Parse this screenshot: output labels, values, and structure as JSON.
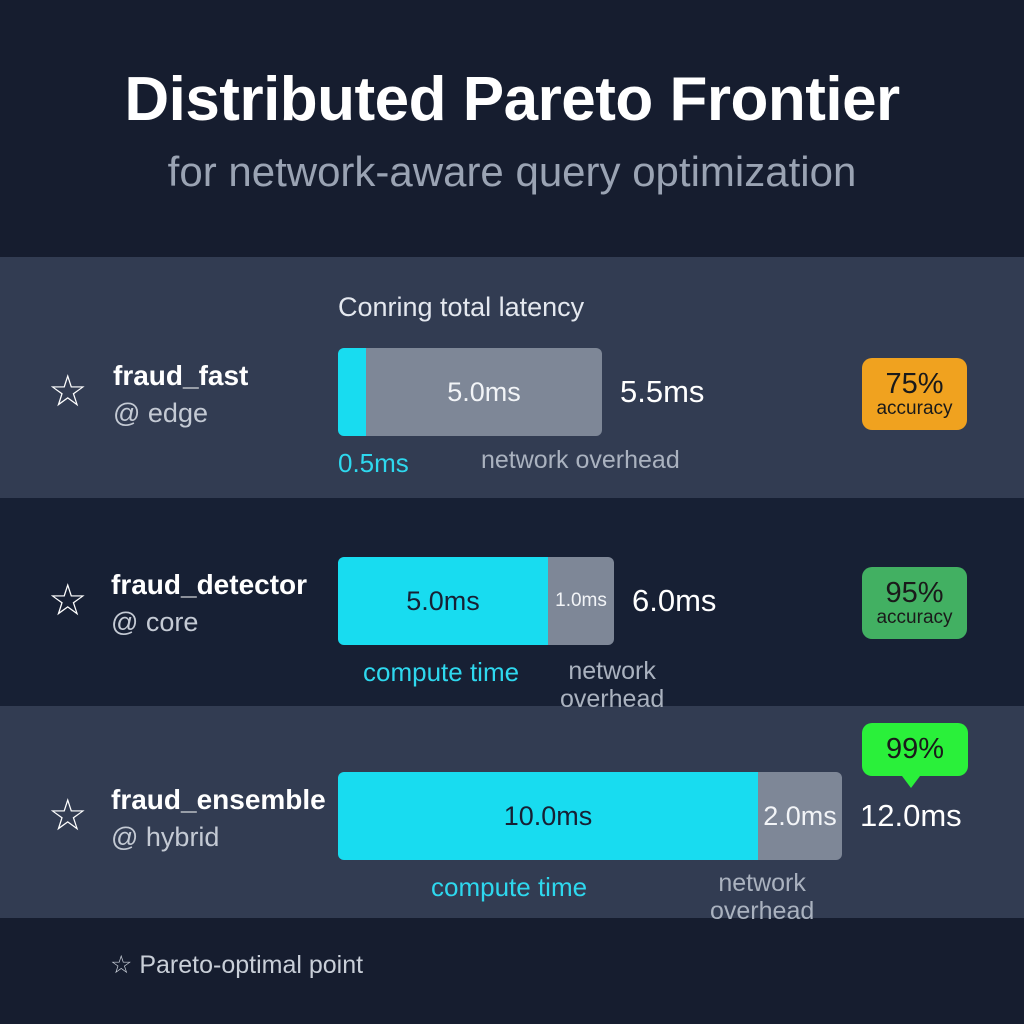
{
  "title": "Distributed Pareto Frontier",
  "subtitle": "for network-aware query optimization",
  "chart_data": {
    "type": "bar",
    "orientation": "horizontal",
    "stacked": true,
    "header": "Conring total latency",
    "unit": "ms",
    "categories": [
      "fraud_fast",
      "fraud_detector",
      "fraud_ensemble"
    ],
    "locations": [
      "@ edge",
      "@ core",
      "@ hybrid"
    ],
    "series": [
      {
        "values": [
          0.5,
          5.0,
          10.0
        ],
        "labels": [
          "0.5ms",
          "5.0ms",
          "10.0ms"
        ],
        "color": "#18dcf0"
      },
      {
        "values": [
          5.0,
          1.0,
          2.0
        ],
        "labels": [
          "5.0ms",
          "1.0ms",
          "2.0ms"
        ],
        "color": "#7e8797"
      }
    ],
    "totals": [
      "5.5ms",
      "6.0ms",
      "12.0ms"
    ],
    "compute_labels": [
      "0.5ms",
      "compute time",
      "compute time"
    ],
    "network_labels": [
      "network overhead",
      "network\noverhead",
      "network\noverhead"
    ],
    "accuracy": [
      {
        "value": "75%",
        "label": "accuracy",
        "color": "#f0a21f"
      },
      {
        "value": "95%",
        "label": "accuracy",
        "color": "#42b062"
      },
      {
        "value": "99%",
        "label": "",
        "color": "#2af03a"
      }
    ],
    "marker": "☆",
    "legend": "☆ Pareto-optimal point",
    "xlim": [
      0,
      12.0
    ]
  }
}
